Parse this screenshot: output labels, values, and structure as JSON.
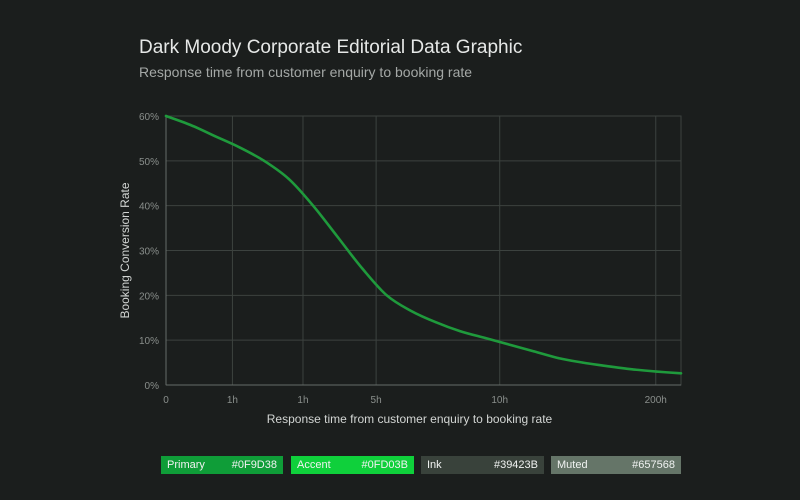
{
  "header": {
    "title": "Dark Moody Corporate Editorial Data Graphic",
    "subtitle": "Response time from customer enquiry to booking rate"
  },
  "colors": {
    "background": "#1b1e1d",
    "line": "#1f9a3c",
    "grid": "#3c423f",
    "axis": "#666c69",
    "tick_text": "#8a8f8c",
    "label_text": "#d2d5d3"
  },
  "chart_data": {
    "type": "line",
    "xlabel": "Response time from customer enquiry to booking rate",
    "ylabel": "Booking Conversion Rate",
    "ylim": [
      0,
      60
    ],
    "x_scale": "log",
    "x_tick_labels": [
      "0",
      "1h",
      "1h",
      "5h",
      "10h",
      "200h"
    ],
    "y_ticks": [
      0,
      10,
      20,
      30,
      40,
      50,
      60
    ],
    "y_tick_labels": [
      "0%",
      "10%",
      "20%",
      "30%",
      "40%",
      "50%",
      "60%"
    ],
    "grid": true,
    "series": [
      {
        "values": [
          60,
          58,
          55.5,
          53,
          50,
          46,
          40,
          33,
          26,
          20,
          16.5,
          14,
          12,
          10.5,
          9,
          7.5,
          6,
          5,
          4.2,
          3.5,
          3,
          2.6
        ]
      }
    ]
  },
  "palette": [
    {
      "name": "Primary",
      "hex": "#0F9D38"
    },
    {
      "name": "Accent",
      "hex": "#0FD03B"
    },
    {
      "name": "Ink",
      "hex": "#39423B"
    },
    {
      "name": "Muted",
      "hex": "#657568"
    }
  ]
}
